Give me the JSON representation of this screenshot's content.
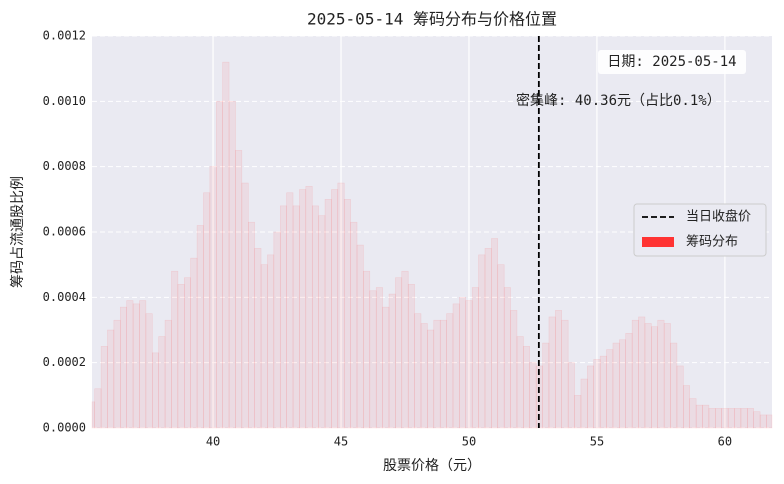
{
  "chart_data": {
    "type": "bar",
    "title": "2025-05-14 筹码分布与价格位置",
    "x_label": "股票价格（元）",
    "y_label": "筹码占流通股比例",
    "x": [
      35.25,
      35.5,
      35.75,
      36,
      36.25,
      36.5,
      36.75,
      37,
      37.25,
      37.5,
      37.75,
      38,
      38.25,
      38.5,
      38.75,
      39,
      39.25,
      39.5,
      39.75,
      40,
      40.25,
      40.5,
      40.75,
      41,
      41.25,
      41.5,
      41.75,
      42,
      42.25,
      42.5,
      42.75,
      43,
      43.25,
      43.5,
      43.75,
      44,
      44.25,
      44.5,
      44.75,
      45,
      45.25,
      45.5,
      45.75,
      46,
      46.25,
      46.5,
      46.75,
      47,
      47.25,
      47.5,
      47.75,
      48,
      48.25,
      48.5,
      48.75,
      49,
      49.25,
      49.5,
      49.75,
      50,
      50.25,
      50.5,
      50.75,
      51,
      51.25,
      51.5,
      51.75,
      52,
      52.25,
      52.5,
      52.75,
      53,
      53.25,
      53.5,
      53.75,
      54,
      54.25,
      54.5,
      54.75,
      55,
      55.25,
      55.5,
      55.75,
      56,
      56.25,
      56.5,
      56.75,
      57,
      57.25,
      57.5,
      57.75,
      58,
      58.25,
      58.5,
      58.75,
      59,
      59.25,
      59.5,
      59.75,
      60,
      60.25,
      60.5,
      60.75,
      61,
      61.25,
      61.5,
      61.75
    ],
    "series": [
      {
        "name": "筹码分布",
        "color": "#ff3333",
        "values": [
          8e-05,
          0.00012,
          0.00025,
          0.0003,
          0.00033,
          0.00037,
          0.00039,
          0.00038,
          0.00039,
          0.00035,
          0.00023,
          0.00028,
          0.00033,
          0.00048,
          0.00044,
          0.00046,
          0.00052,
          0.00062,
          0.00072,
          0.0008,
          0.001,
          0.00112,
          0.001,
          0.00085,
          0.00075,
          0.00063,
          0.00055,
          0.0005,
          0.00053,
          0.0006,
          0.00068,
          0.00072,
          0.00068,
          0.00073,
          0.00074,
          0.00068,
          0.00065,
          0.0007,
          0.00073,
          0.00075,
          0.0007,
          0.00063,
          0.00056,
          0.00048,
          0.00042,
          0.00043,
          0.00037,
          0.00041,
          0.00046,
          0.00048,
          0.00044,
          0.00035,
          0.00032,
          0.0003,
          0.00033,
          0.00033,
          0.00035,
          0.00038,
          0.0004,
          0.00039,
          0.00043,
          0.00053,
          0.00055,
          0.00058,
          0.0005,
          0.00043,
          0.00036,
          0.00028,
          0.00025,
          0.0002,
          0.00019,
          0.00026,
          0.00034,
          0.00036,
          0.00033,
          0.0002,
          0.0001,
          0.00015,
          0.00019,
          0.00021,
          0.00022,
          0.00024,
          0.00026,
          0.00027,
          0.00029,
          0.00033,
          0.00034,
          0.00032,
          0.00031,
          0.00033,
          0.00032,
          0.00026,
          0.00019,
          0.00013,
          9e-05,
          7e-05,
          7e-05,
          6e-05,
          6e-05,
          6e-05,
          6e-05,
          6e-05,
          6e-05,
          6e-05,
          5e-05,
          4e-05,
          4e-05
        ]
      }
    ],
    "reference_line": {
      "name": "当日收盘价",
      "value": 52.73,
      "color": "#000000"
    },
    "annotations": [
      "日期: 2025-05-14",
      "密集峰: 40.36元（占比0.1%）"
    ],
    "xlim": [
      35.27,
      61.84
    ],
    "xticks": [
      40,
      45,
      50,
      55,
      60
    ],
    "ylim": [
      0,
      0.0012
    ],
    "yticks": [
      {
        "value": 0,
        "label": "0.0000"
      },
      {
        "value": 0.0002,
        "label": "0.0002"
      },
      {
        "value": 0.0004,
        "label": "0.0004"
      },
      {
        "value": 0.0006,
        "label": "0.0006"
      },
      {
        "value": 0.0008,
        "label": "0.0008"
      },
      {
        "value": 0.001,
        "label": "0.0010"
      },
      {
        "value": 0.0012,
        "label": "0.0012"
      }
    ],
    "grid": true,
    "legend_position": "right"
  }
}
